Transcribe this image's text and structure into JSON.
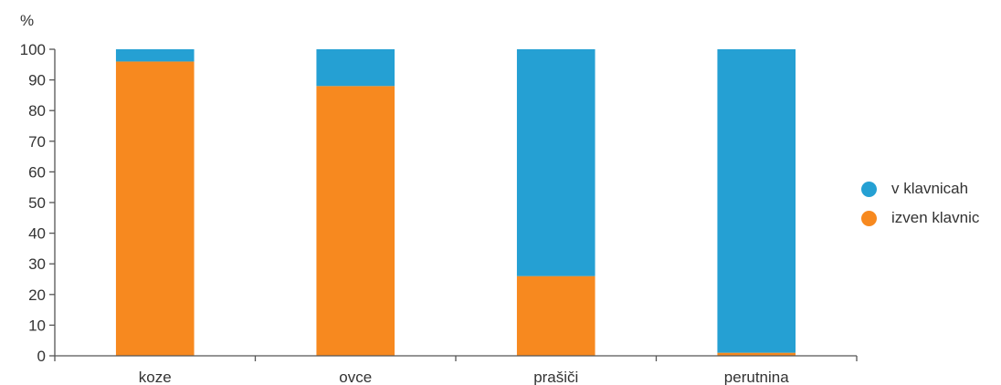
{
  "chart_data": {
    "type": "bar",
    "stacked": true,
    "ylabel": "%",
    "ylim": [
      0,
      100
    ],
    "yticks": [
      0,
      10,
      20,
      30,
      40,
      50,
      60,
      70,
      80,
      90,
      100
    ],
    "categories": [
      "koze",
      "ovce",
      "prašiči",
      "perutnina"
    ],
    "series": [
      {
        "name": "izven klavnic",
        "color": "#F7891F",
        "values": [
          96,
          88,
          26,
          1
        ]
      },
      {
        "name": "v klavnicah",
        "color": "#25A0D3",
        "values": [
          4,
          12,
          74,
          99
        ]
      }
    ],
    "legend": {
      "position": "right",
      "items": [
        {
          "label": "v klavnicah",
          "color": "#25A0D3"
        },
        {
          "label": "izven klavnic",
          "color": "#F7891F"
        }
      ]
    },
    "grid": false
  }
}
